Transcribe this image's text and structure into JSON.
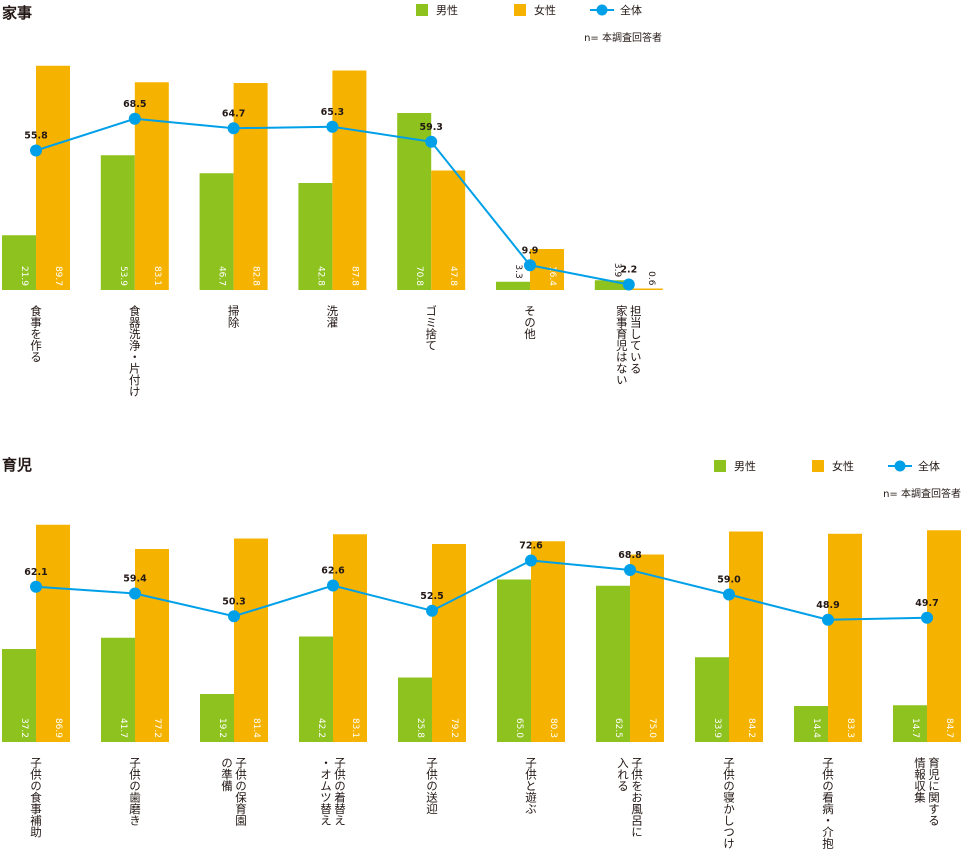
{
  "colors": {
    "male": "#8dc21f",
    "female": "#f5b300",
    "total": "#00a0e9",
    "text": "#231815"
  },
  "chart_data": [
    {
      "type": "bar",
      "title": "家事",
      "legend": [
        "男性",
        "女性",
        "全体"
      ],
      "note": "n= 本調査回答者",
      "ylim": [
        0,
        100
      ],
      "categories": [
        "食事を作る",
        "食器洗浄・片付け",
        "掃除",
        "洗濯",
        "ゴミ捨て",
        "その他",
        "担当している家事育児はない"
      ],
      "category_lines": [
        [
          "食事を作る"
        ],
        [
          "食器洗浄・片付け"
        ],
        [
          "掃除"
        ],
        [
          "洗濯"
        ],
        [
          "ゴミ捨て"
        ],
        [
          "その他"
        ],
        [
          "担当している",
          "家事育児はない"
        ]
      ],
      "series": [
        {
          "name": "男性",
          "type": "bar",
          "values": [
            21.9,
            53.9,
            46.7,
            42.8,
            70.8,
            3.3,
            3.9
          ]
        },
        {
          "name": "女性",
          "type": "bar",
          "values": [
            89.7,
            83.1,
            82.8,
            87.8,
            47.8,
            16.4,
            0.6
          ]
        },
        {
          "name": "全体",
          "type": "line",
          "values": [
            55.8,
            68.5,
            64.7,
            65.3,
            59.3,
            9.9,
            2.2
          ]
        }
      ]
    },
    {
      "type": "bar",
      "title": "育児",
      "legend": [
        "男性",
        "女性",
        "全体"
      ],
      "note": "n= 本調査回答者",
      "ylim": [
        0,
        100
      ],
      "categories": [
        "子供の食事補助",
        "子供の歯磨き",
        "子供の保育園の準備",
        "子供の着替え・オムツ替え",
        "子供の送迎",
        "子供と遊ぶ",
        "子供をお風呂に入れる",
        "子供の寝かしつけ",
        "子供の看病・介抱",
        "育児に関する情報収集"
      ],
      "category_lines": [
        [
          "子供の食事補助"
        ],
        [
          "子供の歯磨き"
        ],
        [
          "子供の保育園",
          "の準備"
        ],
        [
          "子供の着替え",
          "・オムツ替え"
        ],
        [
          "子供の送迎"
        ],
        [
          "子供と遊ぶ"
        ],
        [
          "子供をお風呂に",
          "入れる"
        ],
        [
          "子供の寝かしつけ"
        ],
        [
          "子供の看病・介抱"
        ],
        [
          "育児に関する",
          "情報収集"
        ]
      ],
      "series": [
        {
          "name": "男性",
          "type": "bar",
          "values": [
            37.2,
            41.7,
            19.2,
            42.2,
            25.8,
            65.0,
            62.5,
            33.9,
            14.4,
            14.7
          ]
        },
        {
          "name": "女性",
          "type": "bar",
          "values": [
            86.9,
            77.2,
            81.4,
            83.1,
            79.2,
            80.3,
            75.0,
            84.2,
            83.3,
            84.7
          ]
        },
        {
          "name": "全体",
          "type": "line",
          "values": [
            62.1,
            59.4,
            50.3,
            62.6,
            52.5,
            72.6,
            68.8,
            59.0,
            48.9,
            49.7
          ]
        }
      ]
    }
  ]
}
